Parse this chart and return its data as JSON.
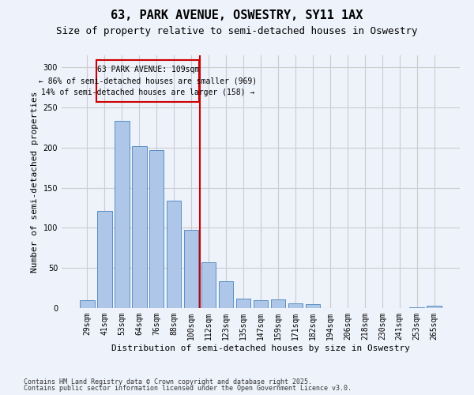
{
  "title1": "63, PARK AVENUE, OSWESTRY, SY11 1AX",
  "title2": "Size of property relative to semi-detached houses in Oswestry",
  "xlabel": "Distribution of semi-detached houses by size in Oswestry",
  "ylabel": "Number of semi-detached properties",
  "categories": [
    "29sqm",
    "41sqm",
    "53sqm",
    "64sqm",
    "76sqm",
    "88sqm",
    "100sqm",
    "112sqm",
    "123sqm",
    "135sqm",
    "147sqm",
    "159sqm",
    "171sqm",
    "182sqm",
    "194sqm",
    "206sqm",
    "218sqm",
    "230sqm",
    "241sqm",
    "253sqm",
    "265sqm"
  ],
  "values": [
    10,
    121,
    233,
    202,
    197,
    134,
    97,
    57,
    33,
    12,
    10,
    11,
    6,
    5,
    0,
    0,
    0,
    0,
    0,
    1,
    3
  ],
  "bar_color": "#aec6e8",
  "bar_edge_color": "#5a8fc2",
  "highlight_label": "63 PARK AVENUE: 109sqm",
  "pct_smaller": "86% of semi-detached houses are smaller (969)",
  "pct_larger": "14% of semi-detached houses are larger (158)",
  "vline_color": "#cc0000",
  "annotation_box_edge": "#cc0000",
  "ylim": [
    0,
    315
  ],
  "yticks": [
    0,
    50,
    100,
    150,
    200,
    250,
    300
  ],
  "footnote1": "Contains HM Land Registry data © Crown copyright and database right 2025.",
  "footnote2": "Contains public sector information licensed under the Open Government Licence v3.0.",
  "bg_color": "#eef2fb",
  "plot_bg_color": "#eef2fb",
  "grid_color": "#cccccc",
  "title1_fontsize": 11,
  "title2_fontsize": 9,
  "tick_fontsize": 7,
  "label_fontsize": 8,
  "footnote_fontsize": 6,
  "ann_fontsize": 7
}
